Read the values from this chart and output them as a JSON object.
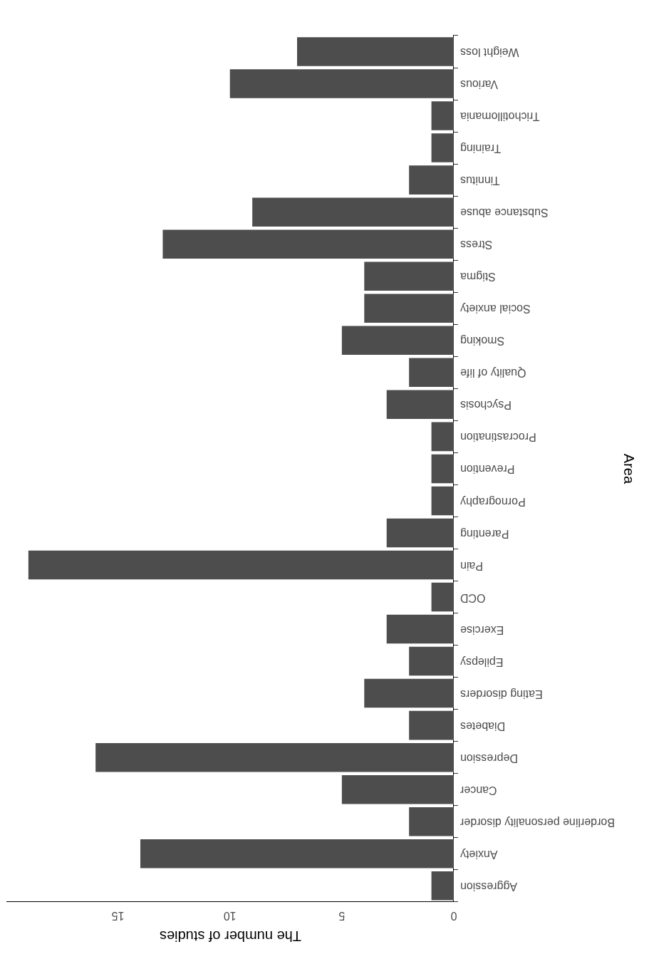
{
  "chart_data": {
    "type": "bar",
    "orientation": "horizontal",
    "xlabel": "The number of studies",
    "ylabel": "Area",
    "categories": [
      "Weight loss",
      "Various",
      "Trichotillomania",
      "Training",
      "Tinnitus",
      "Substance abuse",
      "Stress",
      "Stigma",
      "Social anxiety",
      "Smoking",
      "Quality of life",
      "Psychosis",
      "Procrastination",
      "Prevention",
      "Pornography",
      "Parenting",
      "Pain",
      "OCD",
      "Exercise",
      "Epilepsy",
      "Eating disorders",
      "Diabetes",
      "Depression",
      "Cancer",
      "Borderline personality disorder",
      "Anxiety",
      "Aggression"
    ],
    "values": [
      7,
      10,
      1,
      1,
      2,
      9,
      13,
      4,
      4,
      5,
      2,
      3,
      1,
      1,
      1,
      3,
      19,
      1,
      3,
      2,
      4,
      2,
      16,
      5,
      2,
      14,
      1
    ],
    "color": "#4d4d4d",
    "xlim": [
      19.95,
      0
    ],
    "xticks": [
      0,
      5,
      10,
      15
    ],
    "grid": false,
    "legend": false
  }
}
